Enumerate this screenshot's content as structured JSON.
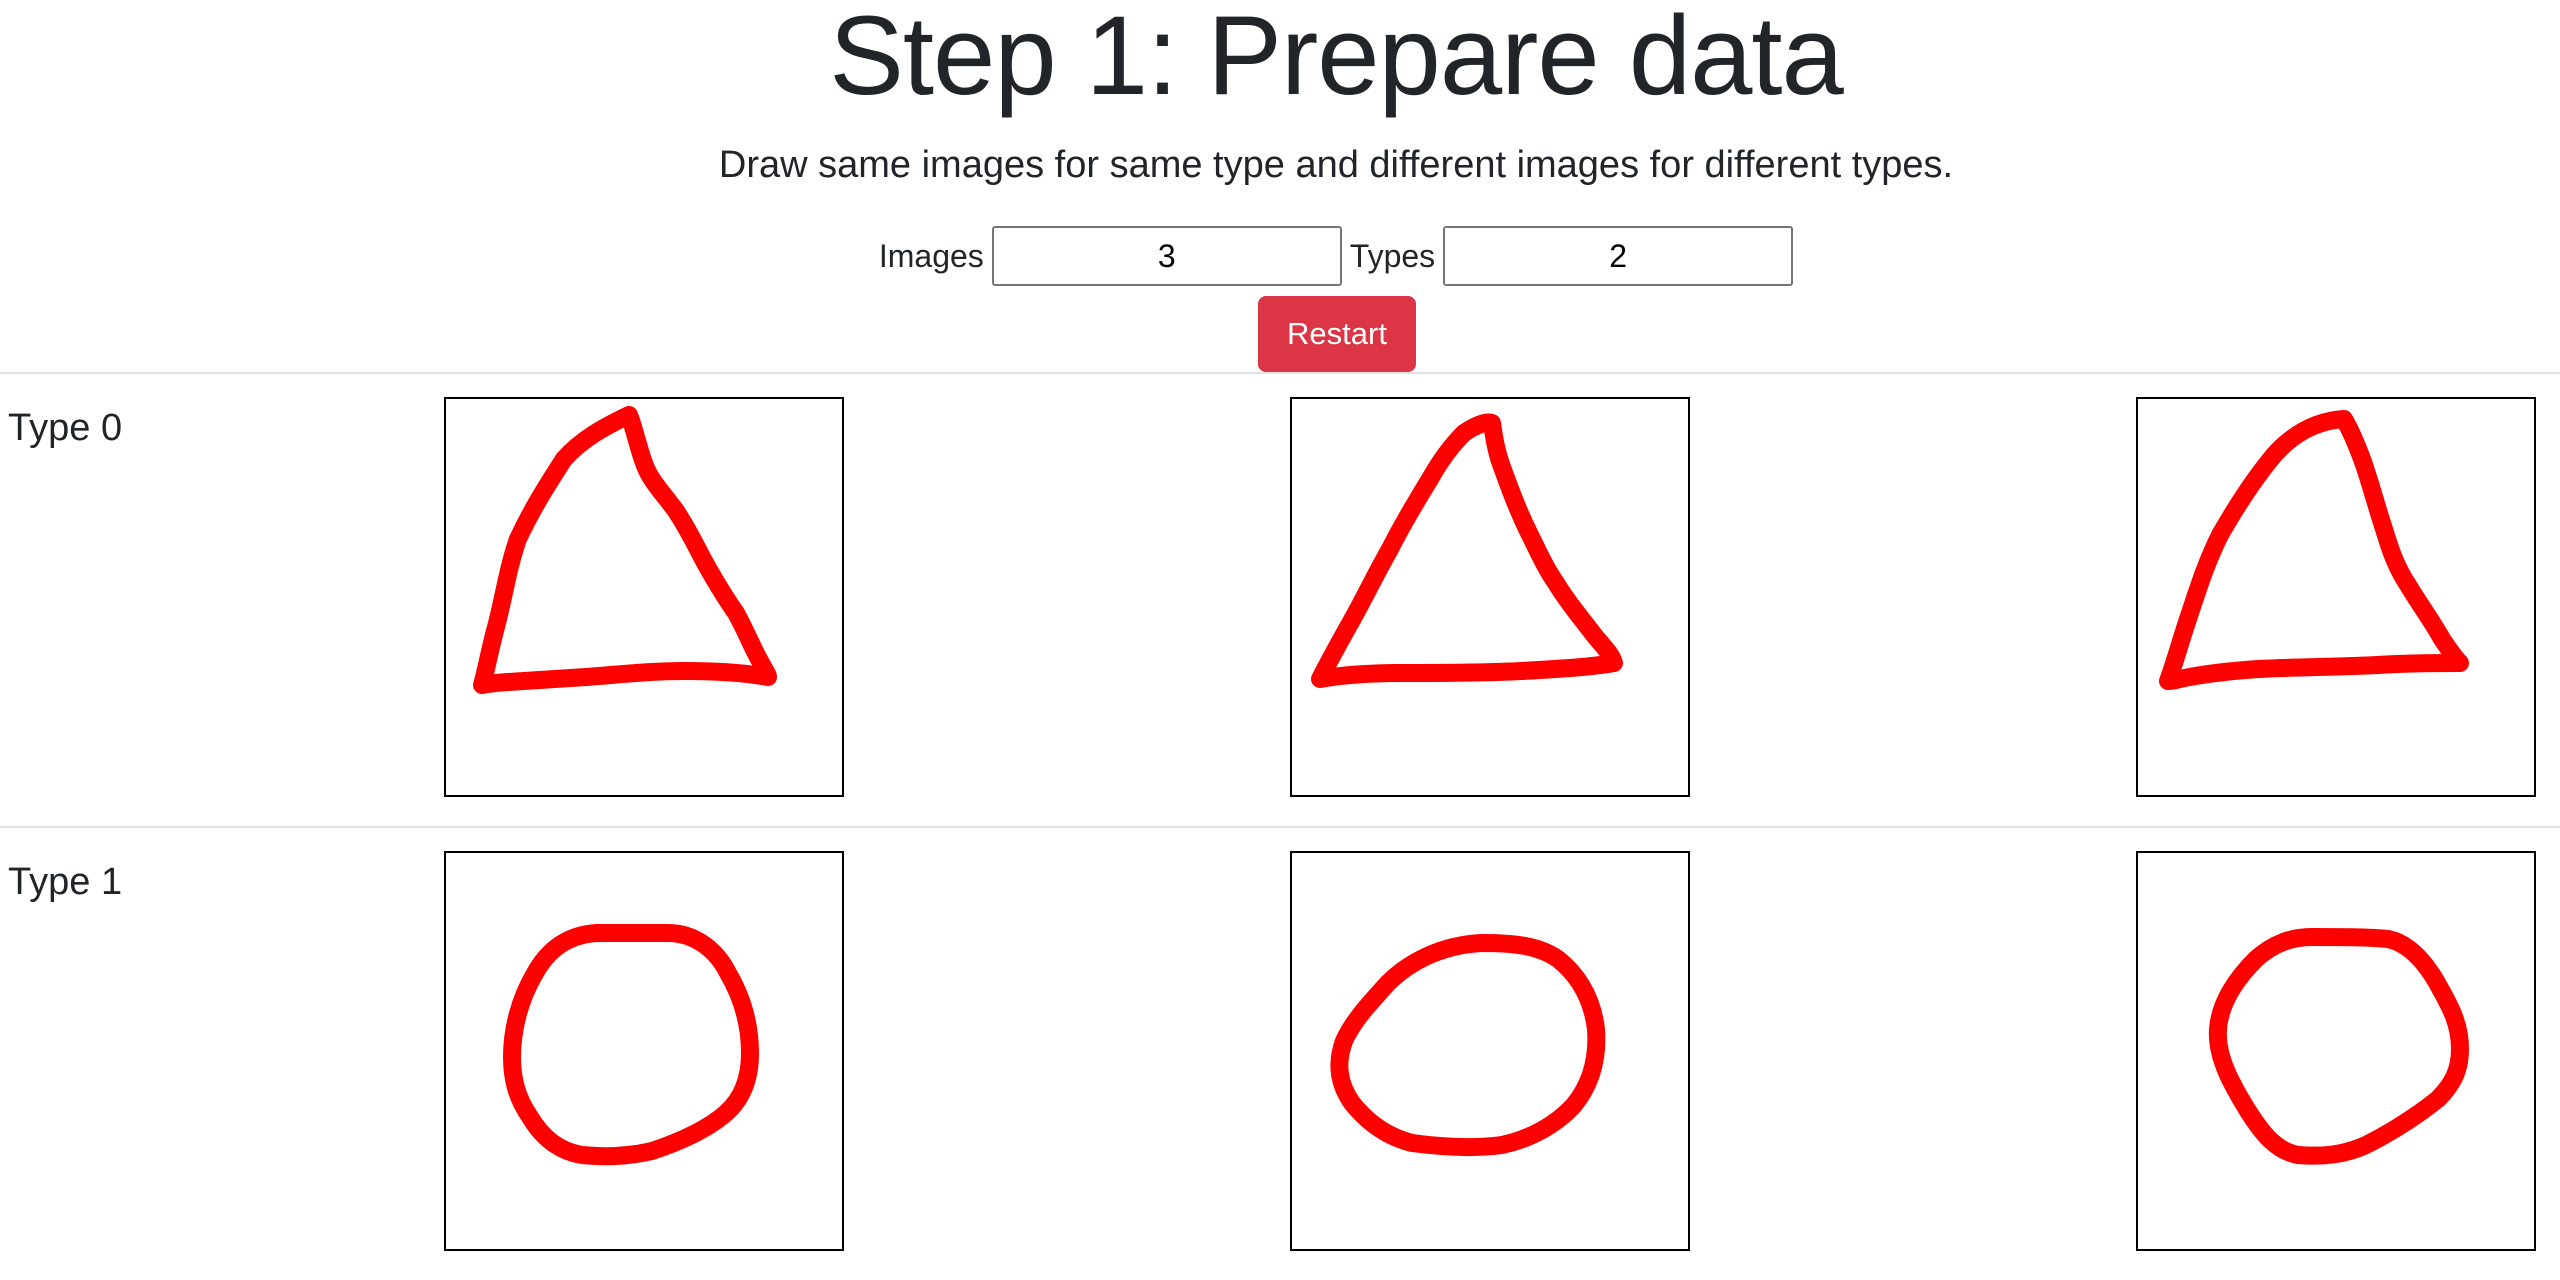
{
  "header": {
    "title": "Step 1: Prepare data",
    "subtitle": "Draw same images for same type and different images for different types."
  },
  "controls": {
    "images_label": "Images",
    "images_value": "3",
    "types_label": "Types",
    "types_value": "2",
    "restart_label": "Restart"
  },
  "types": [
    {
      "label": "Type 0",
      "shape": "triangle",
      "drawings": 3
    },
    {
      "label": "Type 1",
      "shape": "circle",
      "drawings": 3
    }
  ],
  "colors": {
    "stroke": "#ff0000",
    "restart_button": "#dc3545"
  }
}
